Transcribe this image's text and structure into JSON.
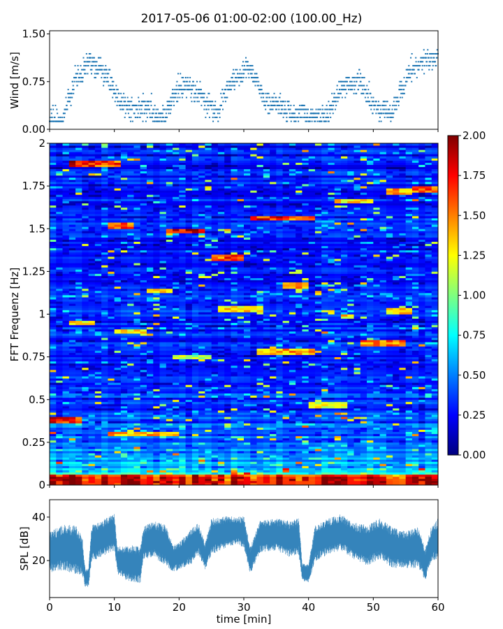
{
  "figure": {
    "title": "2017-05-06 01:00-02:00 (100.00_Hz)"
  },
  "chart_data": [
    {
      "panel": "wind",
      "type": "scatter",
      "title": "",
      "xlabel": "",
      "ylabel": "Wind [m/s]",
      "xlim": [
        0,
        60
      ],
      "ylim": [
        0,
        1.55
      ],
      "y_ticks": [
        0.0,
        0.75,
        1.5
      ],
      "y_tick_labels": [
        "0.00",
        "0.75",
        "1.50"
      ],
      "color": "#1f77b4",
      "note_quantization_step": 0.0625,
      "profile": {
        "x": [
          0,
          2,
          3,
          4,
          5,
          6,
          7,
          8,
          9,
          10,
          11,
          12,
          13,
          14,
          15,
          16,
          17,
          18,
          19,
          20,
          21,
          22,
          23,
          24,
          25,
          26,
          27,
          28,
          29,
          30,
          31,
          32,
          33,
          34,
          35,
          36,
          37,
          38,
          39,
          40,
          41,
          42,
          43,
          44,
          45,
          46,
          47,
          48,
          49,
          50,
          51,
          52,
          53,
          54,
          55,
          56,
          57,
          58,
          59,
          60
        ],
        "y": [
          0.15,
          0.15,
          0.45,
          0.8,
          0.9,
          1.1,
          0.95,
          0.9,
          0.85,
          0.55,
          0.45,
          0.35,
          0.3,
          0.3,
          0.35,
          0.25,
          0.2,
          0.25,
          0.5,
          0.65,
          0.7,
          0.6,
          0.55,
          0.45,
          0.35,
          0.3,
          0.55,
          0.75,
          0.85,
          0.95,
          0.9,
          0.75,
          0.5,
          0.4,
          0.4,
          0.35,
          0.25,
          0.2,
          0.25,
          0.2,
          0.2,
          0.2,
          0.25,
          0.45,
          0.6,
          0.7,
          0.7,
          0.75,
          0.55,
          0.35,
          0.3,
          0.3,
          0.25,
          0.55,
          0.8,
          0.95,
          1.05,
          1.1,
          1.1,
          1.15
        ]
      }
    },
    {
      "panel": "spectrogram",
      "type": "heatmap",
      "title": "",
      "xlabel": "",
      "ylabel": "FFT Frequenz [Hz]",
      "xlim": [
        0,
        60
      ],
      "ylim": [
        0,
        2
      ],
      "y_ticks": [
        0,
        0.25,
        0.5,
        0.75,
        1,
        1.25,
        1.5,
        1.75,
        2
      ],
      "y_tick_labels": [
        "0",
        "0.25",
        "0.5",
        "0.75",
        "1",
        "1.25",
        "1.5",
        "1.75",
        "2"
      ],
      "colormap": "jet",
      "color_stops": [
        "#00007f",
        "#0000ff",
        "#007fff",
        "#00ffff",
        "#7fff7f",
        "#ffff00",
        "#ff7f00",
        "#ff0000",
        "#7f0000"
      ],
      "colorbar": {
        "vmin": 0,
        "vmax": 2,
        "ticks": [
          0,
          0.25,
          0.5,
          0.75,
          1,
          1.25,
          1.5,
          1.75,
          2
        ],
        "tick_labels": [
          "0.00",
          "0.25",
          "0.50",
          "0.75",
          "1.00",
          "1.25",
          "1.50",
          "1.75",
          "2.00"
        ]
      },
      "grid": {
        "time_bins": 60,
        "freq_bins": 160
      },
      "strong_lines": [
        {
          "f": 1.88,
          "t": [
            3,
            6.5
          ],
          "v": 1.8
        },
        {
          "f": 1.88,
          "t": [
            7,
            10.5
          ],
          "v": 1.6
        },
        {
          "f": 1.52,
          "t": [
            9,
            13
          ],
          "v": 1.6
        },
        {
          "f": 1.49,
          "t": [
            18,
            24
          ],
          "v": 1.8
        },
        {
          "f": 1.56,
          "t": [
            31,
            37
          ],
          "v": 1.7
        },
        {
          "f": 1.56,
          "t": [
            37.5,
            40.5
          ],
          "v": 1.5
        },
        {
          "f": 1.72,
          "t": [
            52.5,
            56
          ],
          "v": 1.4
        },
        {
          "f": 1.73,
          "t": [
            56,
            60
          ],
          "v": 1.6
        },
        {
          "f": 1.33,
          "t": [
            25,
            30
          ],
          "v": 1.6
        },
        {
          "f": 1.17,
          "t": [
            36,
            40
          ],
          "v": 1.4
        },
        {
          "f": 1.14,
          "t": [
            15,
            19
          ],
          "v": 1.4
        },
        {
          "f": 1.03,
          "t": [
            26,
            33
          ],
          "v": 1.3
        },
        {
          "f": 1.02,
          "t": [
            52,
            56
          ],
          "v": 1.3
        },
        {
          "f": 0.95,
          "t": [
            3,
            7
          ],
          "v": 1.3
        },
        {
          "f": 0.9,
          "t": [
            10,
            15
          ],
          "v": 1.3
        },
        {
          "f": 0.83,
          "t": [
            48,
            55
          ],
          "v": 1.5
        },
        {
          "f": 0.78,
          "t": [
            32,
            41
          ],
          "v": 1.4
        },
        {
          "f": 0.75,
          "t": [
            19,
            25
          ],
          "v": 1.1
        },
        {
          "f": 1.66,
          "t": [
            44,
            50
          ],
          "v": 1.3
        },
        {
          "f": 0.38,
          "t": [
            0,
            5
          ],
          "v": 1.7
        },
        {
          "f": 0.3,
          "t": [
            9,
            20
          ],
          "v": 1.4
        },
        {
          "f": 0.47,
          "t": [
            40,
            46
          ],
          "v": 1.2
        }
      ]
    },
    {
      "panel": "spl",
      "type": "line",
      "title": "",
      "xlabel": "time [min]",
      "ylabel": "SPL [dB]",
      "xlim": [
        0,
        60
      ],
      "ylim": [
        3,
        48
      ],
      "y_ticks": [
        20,
        40
      ],
      "y_tick_labels": [
        "20",
        "40"
      ],
      "x_ticks": [
        0,
        10,
        20,
        30,
        40,
        50,
        60
      ],
      "x_tick_labels": [
        "0",
        "10",
        "20",
        "30",
        "40",
        "50",
        "60"
      ],
      "color": "#1f77b4",
      "envelope": {
        "x": [
          0,
          2,
          4,
          5,
          5.5,
          6,
          6.5,
          8,
          10,
          10.5,
          12,
          14,
          14.5,
          16,
          18,
          19,
          20,
          22,
          23,
          24,
          25,
          27,
          29,
          30,
          31,
          32.5,
          35,
          37,
          38.5,
          39,
          40,
          41,
          43,
          45,
          47,
          49,
          51,
          53,
          55,
          57,
          58,
          59,
          60
        ],
        "mean": [
          24,
          26,
          25,
          23,
          12,
          12,
          28,
          30,
          33,
          20,
          19,
          18,
          28,
          30,
          27,
          21,
          22,
          27,
          30,
          22,
          31,
          33,
          34,
          33,
          20,
          31,
          32,
          30,
          31,
          15,
          14,
          28,
          31,
          33,
          29,
          27,
          30,
          26,
          25,
          26,
          18,
          28,
          30
        ],
        "spread": [
          9,
          10,
          11,
          9,
          4,
          4,
          8,
          8,
          8,
          6,
          8,
          8,
          7,
          8,
          9,
          6,
          6,
          8,
          7,
          6,
          8,
          7,
          6,
          7,
          6,
          7,
          7,
          8,
          8,
          4,
          4,
          8,
          8,
          8,
          8,
          9,
          9,
          9,
          8,
          9,
          7,
          8,
          9
        ]
      }
    }
  ]
}
